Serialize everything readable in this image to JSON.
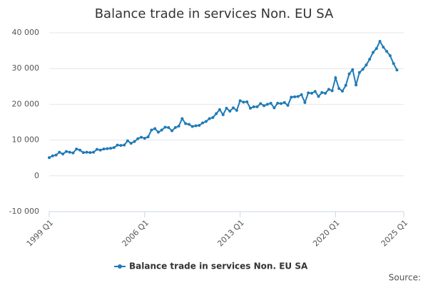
{
  "chart_data": {
    "type": "line",
    "title": "Balance trade in services Non. EU SA",
    "source": "Source:",
    "x": [
      1999,
      1999.25,
      1999.5,
      1999.75,
      2000,
      2000.25,
      2000.5,
      2000.75,
      2001,
      2001.25,
      2001.5,
      2001.75,
      2002,
      2002.25,
      2002.5,
      2002.75,
      2003,
      2003.25,
      2003.5,
      2003.75,
      2004,
      2004.25,
      2004.5,
      2004.75,
      2005,
      2005.25,
      2005.5,
      2005.75,
      2006,
      2006.25,
      2006.5,
      2006.75,
      2007,
      2007.25,
      2007.5,
      2007.75,
      2008,
      2008.25,
      2008.5,
      2008.75,
      2009,
      2009.25,
      2009.5,
      2009.75,
      2010,
      2010.25,
      2010.5,
      2010.75,
      2011,
      2011.25,
      2011.5,
      2011.75,
      2012,
      2012.25,
      2012.5,
      2012.75,
      2013,
      2013.25,
      2013.5,
      2013.75,
      2014,
      2014.25,
      2014.5,
      2014.75,
      2015,
      2015.25,
      2015.5,
      2015.75,
      2016,
      2016.25,
      2016.5,
      2016.75,
      2017,
      2017.25,
      2017.5,
      2017.75,
      2018,
      2018.25,
      2018.5,
      2018.75,
      2019,
      2019.25,
      2019.5,
      2019.75,
      2020,
      2020.25,
      2020.5,
      2020.75,
      2021,
      2021.25,
      2021.5,
      2021.75,
      2022,
      2022.25,
      2022.5,
      2022.75,
      2023,
      2023.25,
      2023.5,
      2023.75,
      2024,
      2024.25,
      2024.5
    ],
    "series": [
      {
        "name": "Balance trade in services Non. EU SA",
        "color": "#1f7ab8",
        "values": [
          5100,
          5600,
          5800,
          6600,
          6100,
          6800,
          6600,
          6400,
          7500,
          7200,
          6500,
          6600,
          6500,
          6600,
          7400,
          7200,
          7500,
          7600,
          7700,
          7900,
          8600,
          8500,
          8600,
          9800,
          9100,
          9600,
          10400,
          10800,
          10500,
          10900,
          12800,
          13200,
          12200,
          12800,
          13600,
          13500,
          12600,
          13500,
          13900,
          16000,
          14600,
          14400,
          13800,
          14000,
          14100,
          14800,
          15200,
          16000,
          16300,
          17400,
          18500,
          17100,
          18900,
          18100,
          19000,
          18300,
          21000,
          20600,
          20700,
          18900,
          19300,
          19300,
          20200,
          19600,
          20000,
          20300,
          19000,
          20300,
          20200,
          20500,
          19700,
          22000,
          22100,
          22200,
          22700,
          20500,
          23200,
          23100,
          23600,
          22200,
          23300,
          23100,
          24200,
          23800,
          27400,
          24400,
          23700,
          25300,
          28500,
          29700,
          25400,
          28900,
          29800,
          31000,
          32600,
          34500,
          35600,
          37600,
          36000,
          34800,
          33600,
          31400,
          29600
        ]
      }
    ],
    "xlim": [
      1999,
      2025
    ],
    "xticks": [
      {
        "value": 1999,
        "label": "1999 Q1"
      },
      {
        "value": 2006,
        "label": "2006 Q1"
      },
      {
        "value": 2013,
        "label": "2013 Q1"
      },
      {
        "value": 2020,
        "label": "2020 Q1"
      },
      {
        "value": 2025,
        "label": "2025 Q1"
      }
    ],
    "ylim": [
      -10000,
      40000
    ],
    "yticks": [
      {
        "value": -10000,
        "label": "-10 000"
      },
      0,
      {
        "value": 10000,
        "label": "10 000"
      },
      {
        "value": 20000,
        "label": "20 000"
      },
      {
        "value": 30000,
        "label": "30 000"
      },
      {
        "value": 40000,
        "label": "40 000"
      }
    ],
    "grid": true,
    "legend": "bottom"
  }
}
